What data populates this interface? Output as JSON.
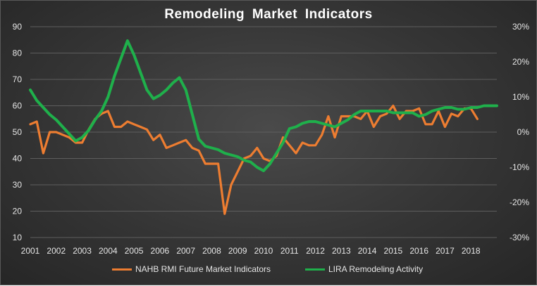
{
  "chart_data": {
    "type": "line",
    "title": "Remodeling  Market  Indicators",
    "x_tick_labels": [
      "2001",
      "2002",
      "2003",
      "2004",
      "2005",
      "2006",
      "2007",
      "2008",
      "2009",
      "2010",
      "2011",
      "2012",
      "2013",
      "2014",
      "2015",
      "2016",
      "2017",
      "2018"
    ],
    "y_left": {
      "range": [
        10,
        90
      ],
      "tick_labels": [
        "10",
        "20",
        "30",
        "40",
        "50",
        "60",
        "70",
        "80",
        "90"
      ]
    },
    "y_right": {
      "range": [
        -30,
        30
      ],
      "tick_labels": [
        "-30%",
        "-20%",
        "-10%",
        "0%",
        "10%",
        "20%",
        "30%"
      ]
    },
    "grid": true,
    "legend_position": "bottom",
    "series": [
      {
        "name": "NAHB RMI Future Market Indicators",
        "axis": "left",
        "color": "#ed7d31",
        "x": [
          2001.0,
          2001.25,
          2001.5,
          2001.75,
          2002.0,
          2002.25,
          2002.5,
          2002.75,
          2003.0,
          2003.25,
          2003.5,
          2003.75,
          2004.0,
          2004.25,
          2004.5,
          2004.75,
          2005.0,
          2005.25,
          2005.5,
          2005.75,
          2006.0,
          2006.25,
          2006.5,
          2006.75,
          2007.0,
          2007.25,
          2007.5,
          2007.75,
          2008.0,
          2008.25,
          2008.5,
          2008.75,
          2009.0,
          2009.25,
          2009.5,
          2009.75,
          2010.0,
          2010.25,
          2010.5,
          2010.75,
          2011.0,
          2011.25,
          2011.5,
          2011.75,
          2012.0,
          2012.25,
          2012.5,
          2012.75,
          2013.0,
          2013.25,
          2013.5,
          2013.75,
          2014.0,
          2014.25,
          2014.5,
          2014.75,
          2015.0,
          2015.25,
          2015.5,
          2015.75,
          2016.0,
          2016.25,
          2016.5,
          2016.75,
          2017.0,
          2017.25,
          2017.5,
          2017.75,
          2018.0,
          2018.25
        ],
        "y": [
          53,
          54,
          42,
          50,
          50,
          49,
          48,
          46,
          46,
          51,
          55,
          57,
          58,
          52,
          52,
          54,
          53,
          52,
          51,
          47,
          49,
          44,
          45,
          46,
          47,
          44,
          43,
          38,
          38,
          38,
          19,
          30,
          35,
          40,
          41,
          44,
          40,
          39,
          41,
          48,
          45,
          42,
          46,
          45,
          45,
          49,
          56,
          48,
          56,
          56,
          56,
          55,
          58,
          52,
          56,
          57,
          60,
          55,
          58,
          58,
          59,
          53,
          53,
          58,
          52,
          57,
          56,
          59,
          59,
          55
        ]
      },
      {
        "name": "LIRA Remodeling Activity",
        "axis": "right",
        "color": "#1fb04b",
        "x": [
          2001.0,
          2001.25,
          2001.5,
          2001.75,
          2002.0,
          2002.25,
          2002.5,
          2002.75,
          2003.0,
          2003.25,
          2003.5,
          2003.75,
          2004.0,
          2004.25,
          2004.5,
          2004.75,
          2005.0,
          2005.25,
          2005.5,
          2005.75,
          2006.0,
          2006.25,
          2006.5,
          2006.75,
          2007.0,
          2007.25,
          2007.5,
          2007.75,
          2008.0,
          2008.25,
          2008.5,
          2008.75,
          2009.0,
          2009.25,
          2009.5,
          2009.75,
          2010.0,
          2010.25,
          2010.5,
          2010.75,
          2011.0,
          2011.25,
          2011.5,
          2011.75,
          2012.0,
          2012.25,
          2012.5,
          2012.75,
          2013.0,
          2013.25,
          2013.5,
          2013.75,
          2014.0,
          2014.25,
          2014.5,
          2014.75,
          2015.0,
          2015.25,
          2015.5,
          2015.75,
          2016.0,
          2016.25,
          2016.5,
          2016.75,
          2017.0,
          2017.25,
          2017.5,
          2017.75,
          2018.0,
          2018.25,
          2018.5,
          2018.75,
          2019.0
        ],
        "y": [
          12,
          9,
          7,
          5,
          3.5,
          1.5,
          -0.5,
          -2.5,
          -1.5,
          0.5,
          3.5,
          6,
          10,
          16,
          21,
          26,
          22,
          17,
          12,
          9.5,
          10.5,
          12,
          14,
          15.5,
          12,
          5,
          -2,
          -4,
          -4.5,
          -5,
          -6,
          -6.5,
          -7,
          -8,
          -8.5,
          -10,
          -11,
          -9,
          -6,
          -3,
          1,
          1.5,
          2.5,
          3,
          3,
          2.5,
          2,
          1.5,
          2.5,
          3.5,
          5,
          6,
          6,
          6,
          6,
          6,
          5.5,
          5.5,
          5.5,
          5.5,
          4.5,
          5,
          6,
          6.5,
          7,
          7,
          6.5,
          6.5,
          7,
          7,
          7.5,
          7.5,
          7.5
        ]
      }
    ]
  }
}
